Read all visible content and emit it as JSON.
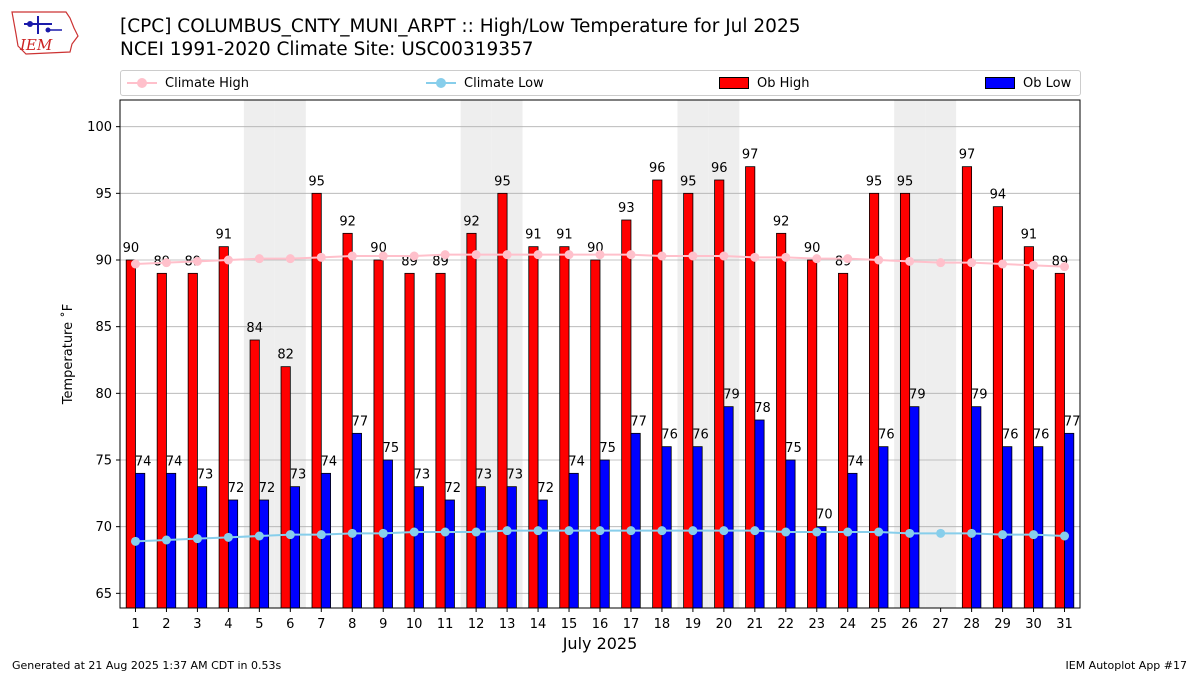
{
  "title_line1": "[CPC] COLUMBUS_CNTY_MUNI_ARPT :: High/Low Temperature for Jul 2025",
  "title_line2": "NCEI 1991-2020 Climate Site: USC00319357",
  "logo_text": "IEM",
  "footer_left": "Generated at 21 Aug 2025 1:37 AM CDT in 0.53s",
  "footer_right": "IEM Autoplot App #17",
  "legend": {
    "climate_high": "Climate High",
    "climate_low": "Climate Low",
    "ob_high": "Ob High",
    "ob_low": "Ob Low"
  },
  "colors": {
    "ob_high": "#ff0000",
    "ob_low": "#0000ff",
    "climate_high": "#ffc0cb",
    "climate_low": "#87ceeb",
    "weekend_shade": "#eeeeee",
    "grid": "#b0b0b0"
  },
  "chart_data": {
    "type": "bar",
    "xlabel": "July 2025",
    "ylabel": "Temperature ˚F",
    "ylim": [
      63.9,
      102
    ],
    "yticks": [
      65,
      70,
      75,
      80,
      85,
      90,
      95,
      100
    ],
    "grid": "horizontal",
    "legend_position": "top",
    "categories": [
      "1",
      "2",
      "3",
      "4",
      "5",
      "6",
      "7",
      "8",
      "9",
      "10",
      "11",
      "12",
      "13",
      "14",
      "15",
      "16",
      "17",
      "18",
      "19",
      "20",
      "21",
      "22",
      "23",
      "24",
      "25",
      "26",
      "27",
      "28",
      "29",
      "30",
      "31"
    ],
    "shaded_days": [
      5,
      6,
      12,
      13,
      19,
      20,
      26,
      27
    ],
    "series": [
      {
        "name": "Ob High",
        "kind": "bar",
        "labels": true,
        "values": [
          90,
          89,
          89,
          91,
          84,
          82,
          95,
          92,
          90,
          89,
          89,
          92,
          95,
          91,
          91,
          90,
          93,
          96,
          95,
          96,
          97,
          92,
          90,
          89,
          95,
          95,
          null,
          97,
          94,
          91,
          89
        ]
      },
      {
        "name": "Ob Low",
        "kind": "bar",
        "labels": true,
        "values": [
          74,
          74,
          73,
          72,
          72,
          73,
          74,
          77,
          75,
          73,
          72,
          73,
          73,
          72,
          74,
          75,
          77,
          76,
          76,
          79,
          78,
          75,
          70,
          74,
          76,
          79,
          null,
          79,
          76,
          76,
          77
        ]
      },
      {
        "name": "Climate High",
        "kind": "line",
        "values": [
          89.7,
          89.8,
          89.9,
          90.0,
          90.1,
          90.1,
          90.2,
          90.3,
          90.3,
          90.3,
          90.4,
          90.4,
          90.4,
          90.4,
          90.4,
          90.4,
          90.4,
          90.3,
          90.3,
          90.3,
          90.2,
          90.2,
          90.1,
          90.1,
          90.0,
          89.9,
          89.8,
          89.8,
          89.7,
          89.6,
          89.5
        ]
      },
      {
        "name": "Climate Low",
        "kind": "line",
        "values": [
          68.9,
          69.0,
          69.1,
          69.2,
          69.3,
          69.4,
          69.4,
          69.5,
          69.5,
          69.6,
          69.6,
          69.6,
          69.7,
          69.7,
          69.7,
          69.7,
          69.7,
          69.7,
          69.7,
          69.7,
          69.7,
          69.6,
          69.6,
          69.6,
          69.6,
          69.5,
          69.5,
          69.5,
          69.4,
          69.4,
          69.3
        ]
      }
    ]
  }
}
